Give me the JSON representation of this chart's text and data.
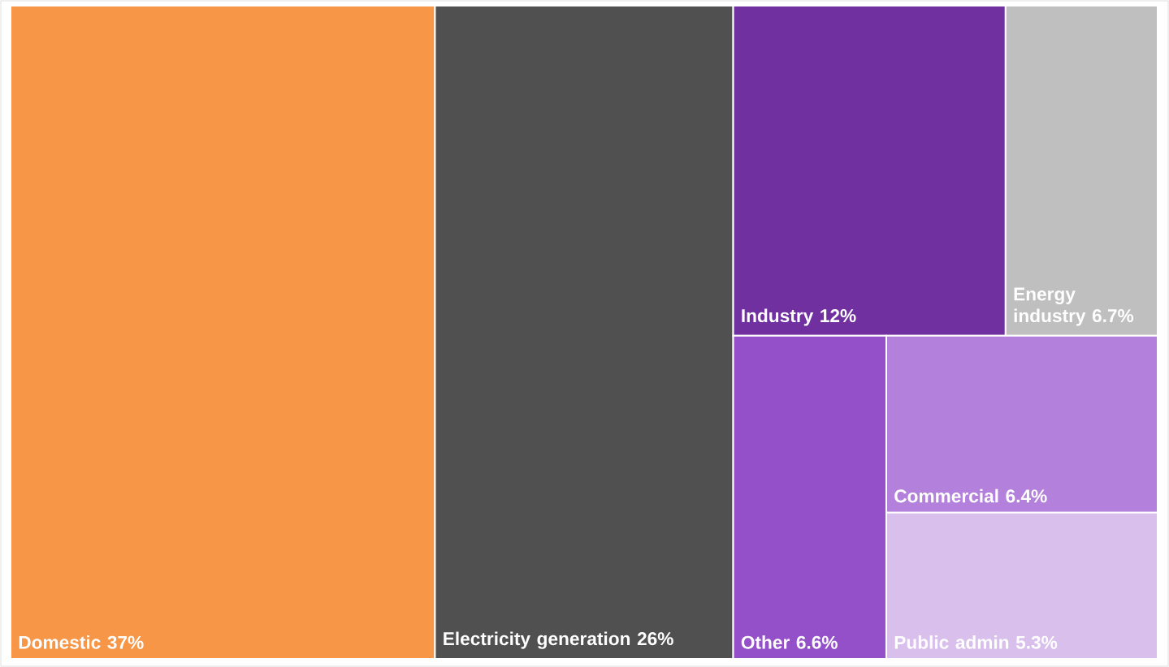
{
  "chart_data": {
    "type": "other",
    "categories": [
      "Domestic",
      "Electricity generation",
      "Industry",
      "Energy industry",
      "Other",
      "Commercial",
      "Public admin"
    ],
    "values": [
      37,
      26,
      12,
      6.7,
      6.6,
      6.4,
      5.3
    ],
    "value_labels": [
      "37%",
      "26%",
      "12%",
      "6.7%",
      "6.6%",
      "6.4%",
      "5.3%"
    ],
    "colors": [
      "#f79646",
      "#505050",
      "#7030a0",
      "#bfbfbf",
      "#9350c9",
      "#b381db",
      "#d8bfec"
    ]
  }
}
